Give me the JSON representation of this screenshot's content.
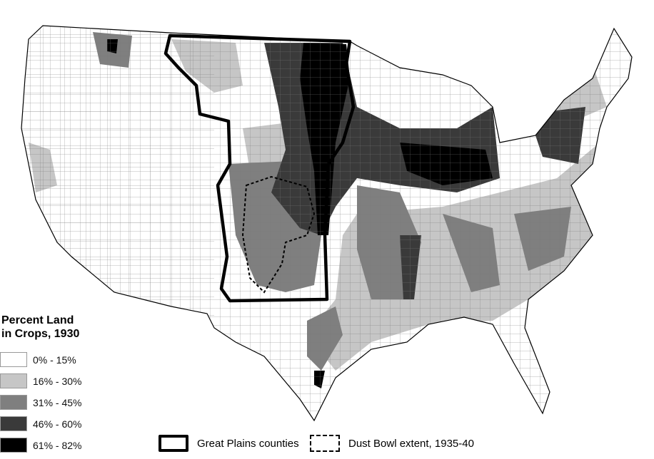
{
  "legend": {
    "title_line1": "Percent Land",
    "title_line2": "in Crops, 1930",
    "classes": [
      {
        "label": "0% - 15%",
        "color": "#ffffff"
      },
      {
        "label": "16% - 30%",
        "color": "#c6c6c6"
      },
      {
        "label": "31% - 45%",
        "color": "#7f7f7f"
      },
      {
        "label": "46% - 60%",
        "color": "#3a3a3a"
      },
      {
        "label": "61% - 82%",
        "color": "#000000"
      }
    ]
  },
  "overlays": {
    "great_plains_label": "Great Plains counties",
    "dust_bowl_label": "Dust Bowl extent, 1935-40"
  },
  "map": {
    "region": "Contiguous United States, county-level"
  }
}
